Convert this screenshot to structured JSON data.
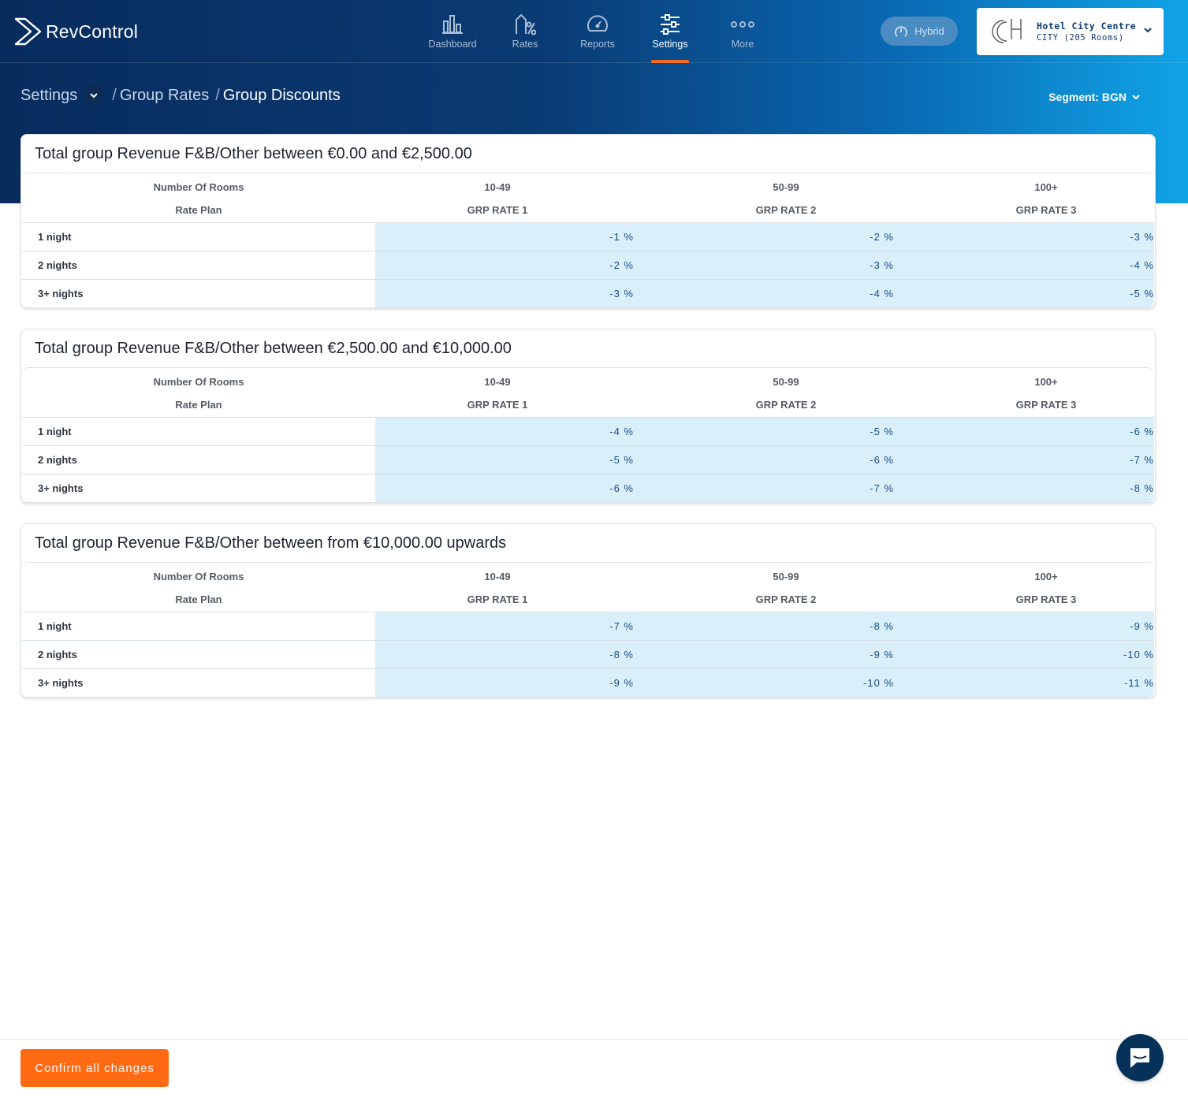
{
  "app": {
    "name": "RevControl"
  },
  "nav": [
    {
      "label": "Dashboard",
      "icon": "dashboard-icon"
    },
    {
      "label": "Rates",
      "icon": "rates-icon"
    },
    {
      "label": "Reports",
      "icon": "reports-icon"
    },
    {
      "label": "Settings",
      "icon": "settings-icon",
      "active": true
    },
    {
      "label": "More",
      "icon": "more-icon"
    }
  ],
  "mode": {
    "label": "Hybrid"
  },
  "hotel": {
    "name": "Hotel City Centre",
    "subtitle": "CITY (205 Rooms)"
  },
  "breadcrumb": {
    "root": "Settings",
    "sep": "/",
    "parent": "Group Rates",
    "current": "Group Discounts"
  },
  "segment": {
    "label": "Segment: BGN"
  },
  "sections": [
    {
      "title": "Total group Revenue F&B/Other between €0.00 and €2,500.00",
      "rooms_label": "Number Of Rooms",
      "rateplan_label": "Rate Plan",
      "columns": [
        {
          "rooms": "10-49",
          "plan": "GRP RATE 1"
        },
        {
          "rooms": "50-99",
          "plan": "GRP RATE 2"
        },
        {
          "rooms": "100+",
          "plan": "GRP RATE 3"
        }
      ],
      "rows": [
        {
          "label": "1 night",
          "values": [
            "-1 %",
            "-2 %",
            "-3 %"
          ]
        },
        {
          "label": "2 nights",
          "values": [
            "-2 %",
            "-3 %",
            "-4 %"
          ]
        },
        {
          "label": "3+ nights",
          "values": [
            "-3 %",
            "-4 %",
            "-5 %"
          ]
        }
      ]
    },
    {
      "title": "Total group Revenue F&B/Other between €2,500.00 and €10,000.00",
      "rooms_label": "Number Of Rooms",
      "rateplan_label": "Rate Plan",
      "columns": [
        {
          "rooms": "10-49",
          "plan": "GRP RATE 1"
        },
        {
          "rooms": "50-99",
          "plan": "GRP RATE 2"
        },
        {
          "rooms": "100+",
          "plan": "GRP RATE 3"
        }
      ],
      "rows": [
        {
          "label": "1 night",
          "values": [
            "-4 %",
            "-5 %",
            "-6 %"
          ]
        },
        {
          "label": "2 nights",
          "values": [
            "-5 %",
            "-6 %",
            "-7 %"
          ]
        },
        {
          "label": "3+ nights",
          "values": [
            "-6 %",
            "-7 %",
            "-8 %"
          ]
        }
      ]
    },
    {
      "title": "Total group Revenue F&B/Other between from €10,000.00 upwards",
      "rooms_label": "Number Of Rooms",
      "rateplan_label": "Rate Plan",
      "columns": [
        {
          "rooms": "10-49",
          "plan": "GRP RATE 1"
        },
        {
          "rooms": "50-99",
          "plan": "GRP RATE 2"
        },
        {
          "rooms": "100+",
          "plan": "GRP RATE 3"
        }
      ],
      "rows": [
        {
          "label": "1 night",
          "values": [
            "-7 %",
            "-8 %",
            "-9 %"
          ]
        },
        {
          "label": "2 nights",
          "values": [
            "-8 %",
            "-9 %",
            "-10 %"
          ]
        },
        {
          "label": "3+ nights",
          "values": [
            "-9 %",
            "-10 %",
            "-11 %"
          ]
        }
      ]
    }
  ],
  "footer": {
    "confirm_label": "Confirm all changes"
  },
  "colors": {
    "accent": "#ff6a13",
    "header_dark": "#082c5e",
    "header_light": "#10a3e6",
    "cell_bg": "#d9f0fb",
    "value_text": "#1c4c84"
  }
}
